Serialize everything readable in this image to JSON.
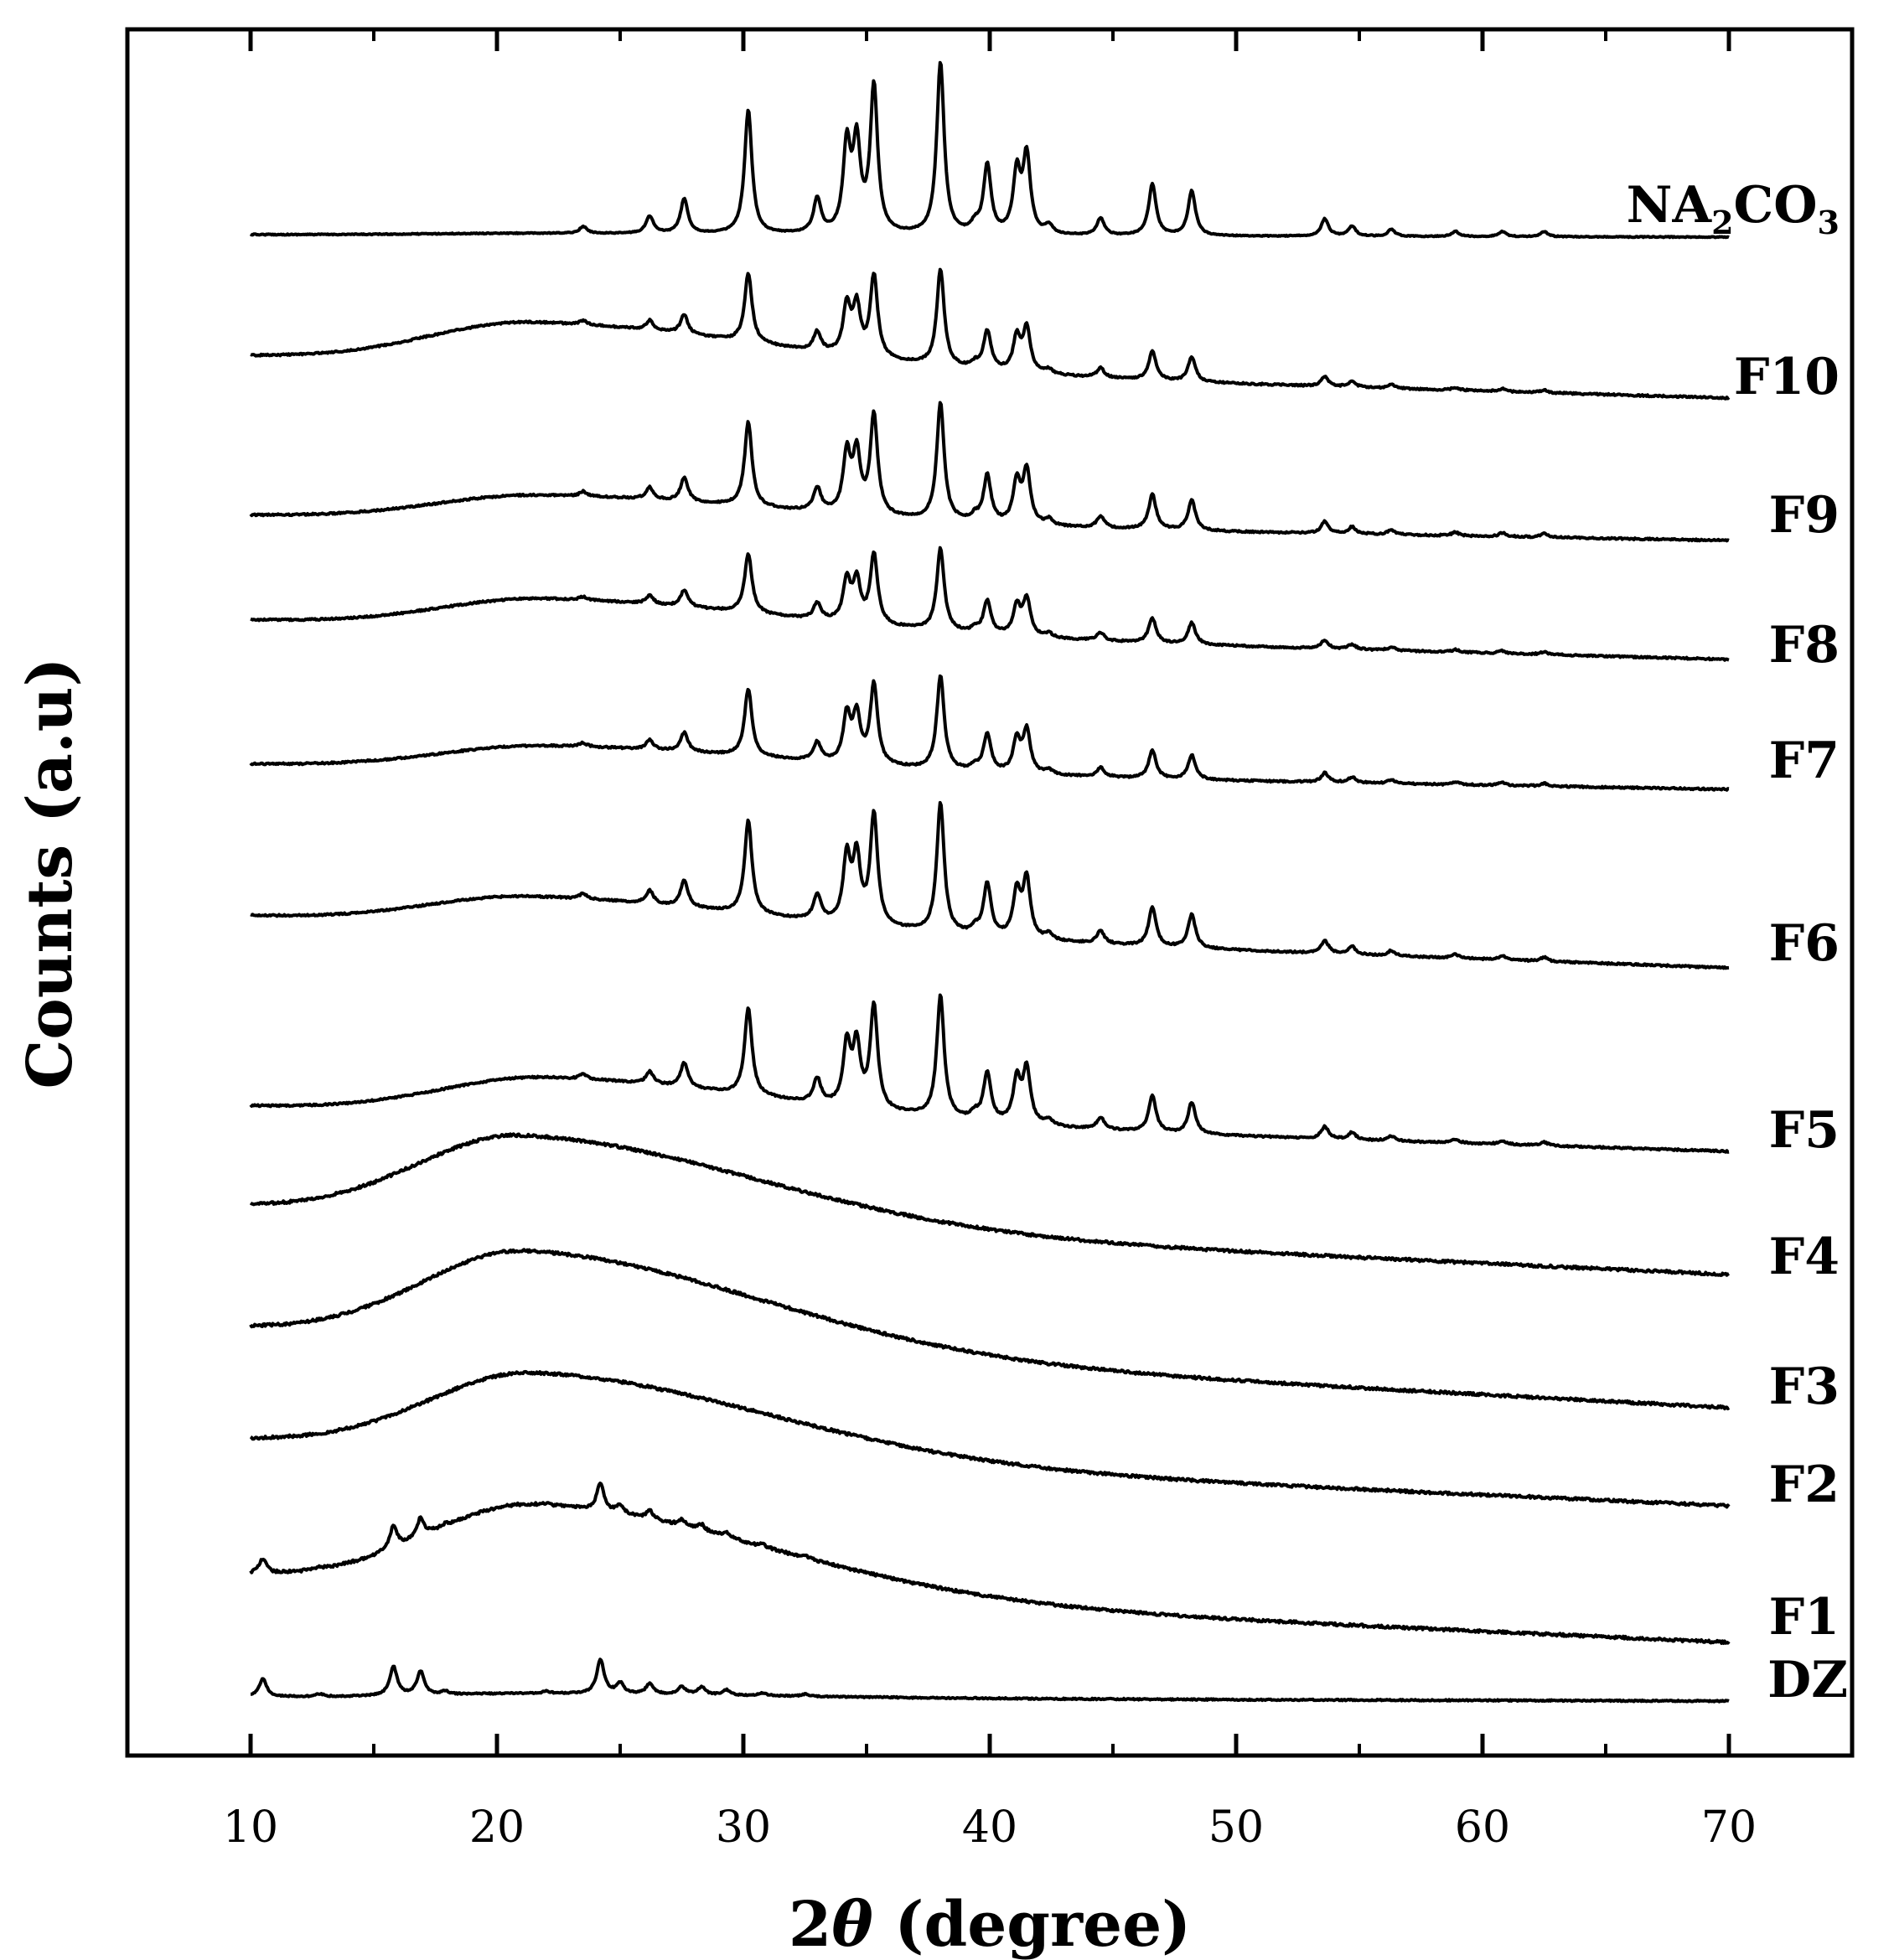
{
  "chart_data": {
    "type": "line",
    "title": "",
    "xlabel": "2θ (degree)",
    "xlabel_theta": "θ",
    "xlabel_rest": " (degree)",
    "xlabel_prefix": "2",
    "ylabel": "Counts (a.u)",
    "xlim": [
      5,
      75
    ],
    "x_data_range": [
      10,
      70
    ],
    "xticks": [
      10,
      20,
      30,
      40,
      50,
      60,
      70
    ],
    "x_minor_ticks": [
      5,
      15,
      25,
      35,
      45,
      55,
      65,
      75
    ],
    "yticks": [],
    "grid": false,
    "legend": "series labels at right end of each trace",
    "na2co3_peaks": [
      {
        "pos": 23.5,
        "h": 0.04
      },
      {
        "pos": 26.2,
        "h": 0.1
      },
      {
        "pos": 27.6,
        "h": 0.2
      },
      {
        "pos": 30.2,
        "h": 0.72
      },
      {
        "pos": 33.0,
        "h": 0.2
      },
      {
        "pos": 34.2,
        "h": 0.5
      },
      {
        "pos": 34.6,
        "h": 0.5
      },
      {
        "pos": 35.3,
        "h": 0.85
      },
      {
        "pos": 38.0,
        "h": 1.0
      },
      {
        "pos": 39.4,
        "h": 0.05
      },
      {
        "pos": 39.9,
        "h": 0.4
      },
      {
        "pos": 41.1,
        "h": 0.35
      },
      {
        "pos": 41.5,
        "h": 0.45
      },
      {
        "pos": 42.4,
        "h": 0.05
      },
      {
        "pos": 44.5,
        "h": 0.1
      },
      {
        "pos": 46.6,
        "h": 0.3
      },
      {
        "pos": 48.2,
        "h": 0.26
      },
      {
        "pos": 53.6,
        "h": 0.1
      },
      {
        "pos": 54.7,
        "h": 0.06
      },
      {
        "pos": 56.3,
        "h": 0.04
      },
      {
        "pos": 58.9,
        "h": 0.03
      },
      {
        "pos": 60.8,
        "h": 0.03
      },
      {
        "pos": 62.5,
        "h": 0.03
      }
    ],
    "dz_peaks": [
      {
        "pos": 10.5,
        "h": 0.35
      },
      {
        "pos": 12.8,
        "h": 0.05
      },
      {
        "pos": 15.8,
        "h": 0.55
      },
      {
        "pos": 16.9,
        "h": 0.45
      },
      {
        "pos": 17.9,
        "h": 0.06
      },
      {
        "pos": 22.0,
        "h": 0.04
      },
      {
        "pos": 24.2,
        "h": 0.65
      },
      {
        "pos": 25.0,
        "h": 0.2
      },
      {
        "pos": 26.2,
        "h": 0.2
      },
      {
        "pos": 27.5,
        "h": 0.15
      },
      {
        "pos": 28.3,
        "h": 0.15
      },
      {
        "pos": 29.3,
        "h": 0.1
      },
      {
        "pos": 30.8,
        "h": 0.05
      },
      {
        "pos": 32.5,
        "h": 0.04
      }
    ],
    "series": [
      {
        "name": "NA2CO3",
        "label_main": "NA",
        "label_sub": "2",
        "label_tail": "CO",
        "label_sub2": "3",
        "baseline": 0.0,
        "slope": 0.0,
        "hump": 0.0,
        "hump_center": 21.5,
        "peak_set": "na2co3",
        "peak_scale": 205,
        "noise": 0.03
      },
      {
        "name": "F10",
        "label_main": "F10",
        "baseline": 0.0,
        "slope": 0.5,
        "hump": 0.6,
        "hump_center": 21.5,
        "peak_set": "na2co3",
        "peak_scale": 115,
        "noise": 0.05
      },
      {
        "name": "F9",
        "label_main": "F9",
        "baseline": 0.0,
        "slope": 0.2,
        "hump": 0.22,
        "hump_center": 21.8,
        "peak_set": "na2co3",
        "peak_scale": 140,
        "noise": 0.05
      },
      {
        "name": "F8",
        "label_main": "F8",
        "baseline": 0.0,
        "slope": 0.3,
        "hump": 0.25,
        "hump_center": 22.0,
        "peak_set": "na2co3",
        "peak_scale": 98,
        "noise": 0.05
      },
      {
        "name": "F7",
        "label_main": "F7",
        "baseline": 0.0,
        "slope": 0.2,
        "hump": 0.18,
        "hump_center": 22.0,
        "peak_set": "na2co3",
        "peak_scale": 112,
        "noise": 0.05
      },
      {
        "name": "F6",
        "label_main": "F6",
        "baseline": 0.0,
        "slope": 0.4,
        "hump": 0.22,
        "hump_center": 21.5,
        "peak_set": "na2co3",
        "peak_scale": 155,
        "noise": 0.05
      },
      {
        "name": "F5",
        "label_main": "F5",
        "baseline": 0.0,
        "slope": 0.35,
        "hump": 0.25,
        "hump_center": 22.0,
        "peak_set": "na2co3",
        "peak_scale": 145,
        "noise": 0.05
      },
      {
        "name": "F4",
        "label_main": "F4",
        "baseline": 0.0,
        "slope": 0.4,
        "hump": 1.0,
        "hump_center": 21.0,
        "peak_set": "none",
        "peak_scale": 0,
        "noise": 0.08
      },
      {
        "name": "F3",
        "label_main": "F3",
        "baseline": 0.0,
        "slope": 0.45,
        "hump": 0.9,
        "hump_center": 21.2,
        "peak_set": "none",
        "peak_scale": 0,
        "noise": 0.08
      },
      {
        "name": "F2",
        "label_main": "F2",
        "baseline": 0.0,
        "slope": 0.35,
        "hump": 0.7,
        "hump_center": 21.5,
        "peak_set": "none",
        "peak_scale": 0,
        "noise": 0.08
      },
      {
        "name": "F1",
        "label_main": "F1",
        "baseline": 0.0,
        "slope": 0.35,
        "hump": 0.6,
        "hump_center": 21.5,
        "peak_set": "dz",
        "peak_scale": 50,
        "noise": 0.08
      },
      {
        "name": "DZ",
        "label_main": "DZ",
        "baseline": 0.0,
        "slope": 0.02,
        "hump": 0.02,
        "hump_center": 21.5,
        "peak_set": "dz",
        "peak_scale": 62,
        "noise": 0.04
      }
    ]
  }
}
